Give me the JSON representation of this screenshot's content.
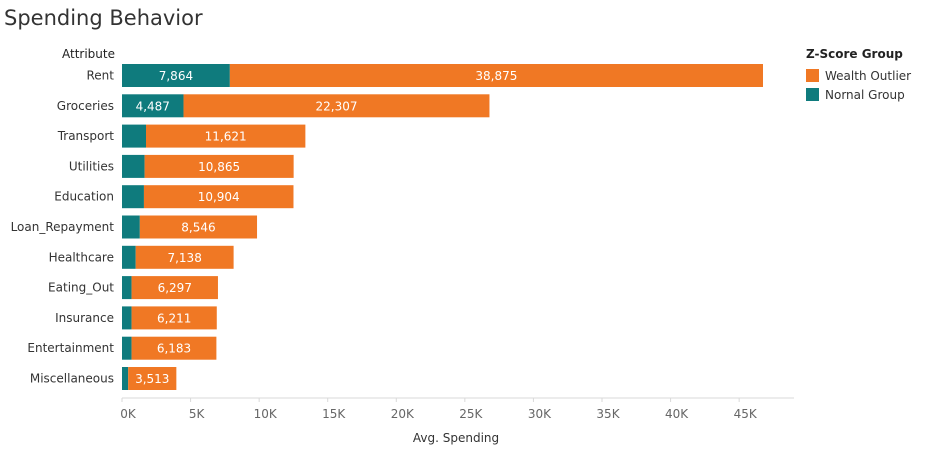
{
  "chart_data": {
    "type": "bar",
    "orientation": "horizontal",
    "stacked": true,
    "title": "Spending Behavior",
    "category_header": "Attribute",
    "xlabel": "Avg. Spending",
    "categories": [
      "Rent",
      "Groceries",
      "Transport",
      "Utilities",
      "Education",
      "Loan_Repayment",
      "Healthcare",
      "Eating_Out",
      "Insurance",
      "Entertainment",
      "Miscellaneous"
    ],
    "series": [
      {
        "name": "Nornal Group",
        "color": "#0f7b7d",
        "values": [
          7864,
          4487,
          1750,
          1650,
          1600,
          1300,
          1000,
          700,
          700,
          700,
          450
        ],
        "labels": [
          "7,864",
          "4,487",
          "",
          "",
          "",
          "",
          "",
          "",
          "",
          "",
          ""
        ]
      },
      {
        "name": "Wealth Outlier",
        "color": "#f07824",
        "values": [
          38875,
          22307,
          11621,
          10865,
          10904,
          8546,
          7138,
          6297,
          6211,
          6183,
          3513
        ],
        "labels": [
          "38,875",
          "22,307",
          "11,621",
          "10,865",
          "10,904",
          "8,546",
          "7,138",
          "6,297",
          "6,211",
          "6,183",
          "3,513"
        ]
      }
    ],
    "xlim": [
      0,
      49000
    ],
    "xticks": [
      0,
      5000,
      10000,
      15000,
      20000,
      25000,
      30000,
      35000,
      40000,
      45000
    ],
    "xtick_labels": [
      "0K",
      "5K",
      "10K",
      "15K",
      "20K",
      "25K",
      "30K",
      "35K",
      "40K",
      "45K"
    ],
    "grid": false,
    "legend": {
      "title": "Z-Score Group",
      "position": "top-right",
      "order": [
        "Wealth Outlier",
        "Nornal Group"
      ]
    }
  }
}
